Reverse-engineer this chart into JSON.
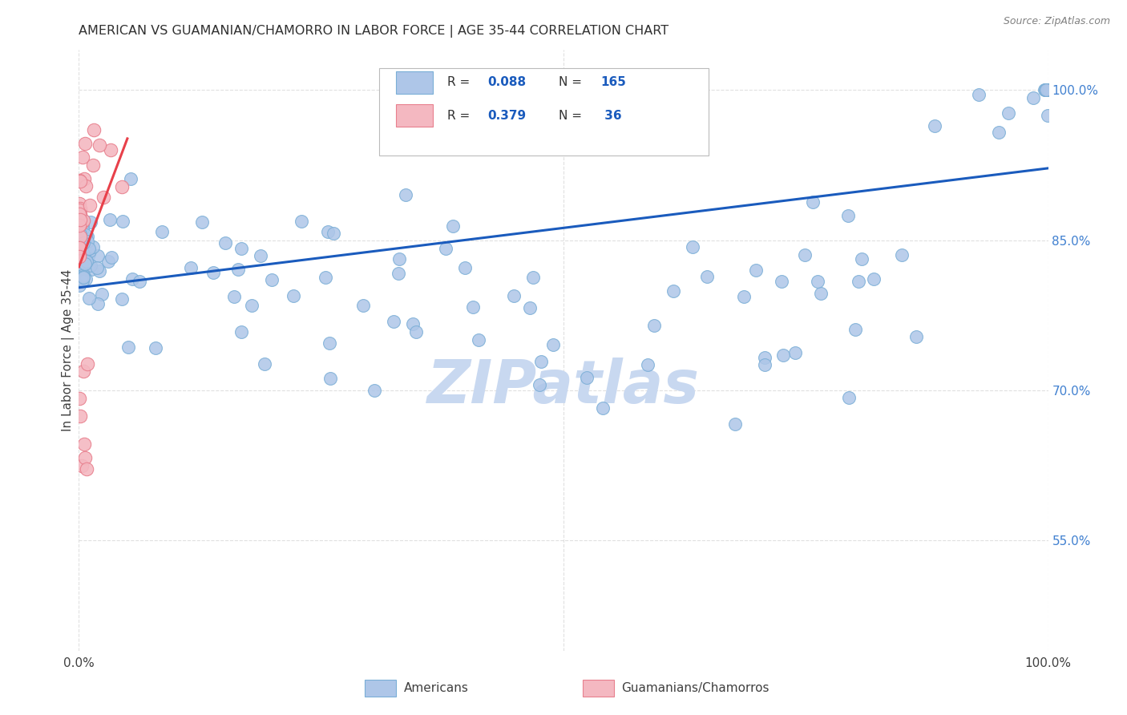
{
  "title": "AMERICAN VS GUAMANIAN/CHAMORRO IN LABOR FORCE | AGE 35-44 CORRELATION CHART",
  "source": "Source: ZipAtlas.com",
  "ylabel": "In Labor Force | Age 35-44",
  "xmin": 0.0,
  "xmax": 1.0,
  "ymin": 0.44,
  "ymax": 1.04,
  "xtick_labels": [
    "0.0%",
    "100.0%"
  ],
  "ytick_labels_right": [
    "55.0%",
    "70.0%",
    "85.0%",
    "100.0%"
  ],
  "ytick_vals_right": [
    0.55,
    0.7,
    0.85,
    1.0
  ],
  "blue_color": "#aec6e8",
  "blue_edge_color": "#7aaed6",
  "pink_color": "#f4b8c1",
  "pink_edge_color": "#e8808e",
  "trendline_blue_color": "#1a5bbd",
  "trendline_pink_color": "#e8404a",
  "watermark_text": "ZIPatlas",
  "watermark_color": "#c8d8f0",
  "background_color": "#ffffff",
  "grid_color": "#e0e0e0",
  "title_color": "#303030",
  "source_color": "#808080",
  "axis_label_color": "#404040",
  "right_tick_color": "#4080d0",
  "legend_blue_r": "0.088",
  "legend_blue_n": "165",
  "legend_pink_r": "0.379",
  "legend_pink_n": " 36"
}
